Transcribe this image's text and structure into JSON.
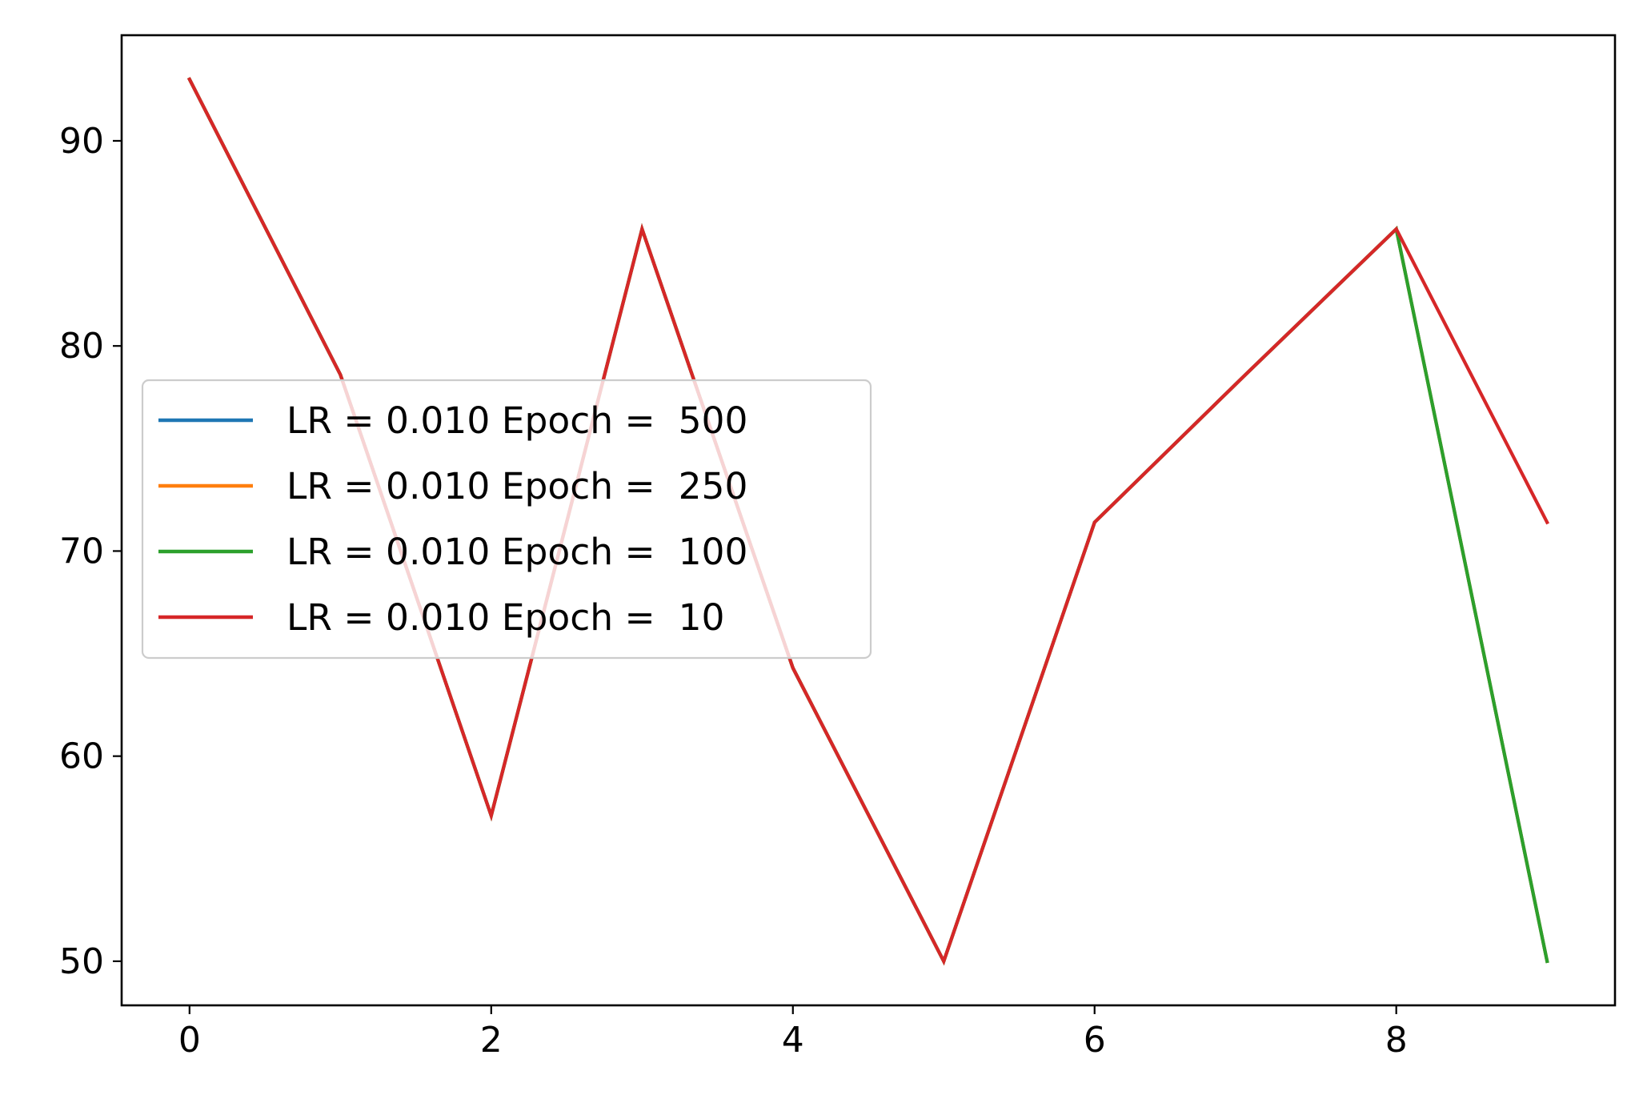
{
  "chart_data": {
    "type": "line",
    "title": "",
    "xlabel": "",
    "ylabel": "",
    "xlim": [
      -0.45,
      9.45
    ],
    "ylim": [
      47.85,
      95.15
    ],
    "x_ticks": [
      0,
      2,
      4,
      6,
      8
    ],
    "y_ticks": [
      50,
      60,
      70,
      80,
      90
    ],
    "x_tick_labels": [
      "0",
      "2",
      "4",
      "6",
      "8"
    ],
    "y_tick_labels": [
      "50",
      "60",
      "70",
      "80",
      "90"
    ],
    "grid": false,
    "legend_position": "center-left",
    "x": [
      0,
      1,
      2,
      3,
      4,
      5,
      6,
      7,
      8,
      9
    ],
    "series": [
      {
        "name": "LR = 0.010 Epoch =  500",
        "color": "#1f77b4",
        "values": [
          93.0,
          78.6,
          57.1,
          85.7,
          64.3,
          50.0,
          71.4,
          78.6,
          85.7,
          50.0
        ]
      },
      {
        "name": "LR = 0.010 Epoch =  250",
        "color": "#ff7f0e",
        "values": [
          93.0,
          78.6,
          57.1,
          85.7,
          64.3,
          50.0,
          71.4,
          78.6,
          85.7,
          50.0
        ]
      },
      {
        "name": "LR = 0.010 Epoch =  100",
        "color": "#2ca02c",
        "values": [
          93.0,
          78.6,
          57.1,
          85.7,
          64.3,
          50.0,
          71.4,
          78.6,
          85.7,
          50.0
        ]
      },
      {
        "name": "LR = 0.010 Epoch =  10",
        "color": "#d62728",
        "values": [
          93.0,
          78.6,
          57.1,
          85.7,
          64.3,
          50.0,
          71.4,
          78.6,
          85.7,
          71.4
        ]
      }
    ]
  }
}
